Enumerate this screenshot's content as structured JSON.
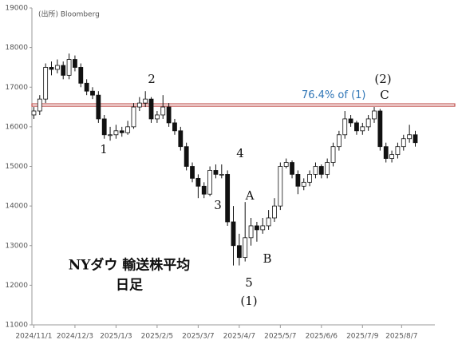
{
  "chart_data": {
    "type": "candlestick",
    "source": "(出所) Bloomberg",
    "x": [
      0,
      3,
      6,
      9,
      12,
      15,
      18,
      21,
      24,
      27,
      30,
      33,
      36,
      39,
      42,
      45,
      48,
      51,
      54,
      57,
      60,
      63,
      66,
      69,
      72,
      75,
      78,
      81,
      84,
      87,
      90,
      93,
      96,
      99,
      102,
      105,
      108,
      111,
      114,
      117,
      120,
      123,
      126,
      129,
      132,
      135,
      138,
      141,
      144,
      147,
      150,
      153,
      156,
      159,
      162,
      165,
      168,
      171,
      174,
      177,
      180,
      183,
      186,
      189,
      192,
      195
    ],
    "open": [
      16300,
      16400,
      16700,
      17500,
      17450,
      17550,
      17300,
      17700,
      17500,
      17100,
      16900,
      16800,
      16200,
      15800,
      15800,
      15900,
      15850,
      16000,
      16500,
      16600,
      16700,
      16200,
      16300,
      16500,
      16100,
      15900,
      15500,
      15000,
      14700,
      14500,
      14300,
      14900,
      14800,
      14800,
      13600,
      13000,
      12700,
      13200,
      13500,
      13400,
      13500,
      13700,
      14000,
      15000,
      15100,
      14800,
      14500,
      14600,
      14800,
      15000,
      14800,
      15100,
      15500,
      15800,
      16200,
      16100,
      15900,
      16000,
      16200,
      16400,
      15500,
      15200,
      15300,
      15500,
      15700,
      15800
    ],
    "high": [
      16500,
      16800,
      17600,
      17650,
      17700,
      17650,
      17850,
      17800,
      17600,
      17200,
      17000,
      16900,
      16300,
      16000,
      16050,
      16000,
      16150,
      16600,
      16750,
      16900,
      16750,
      16400,
      16800,
      16600,
      16200,
      16000,
      15600,
      15100,
      14800,
      14600,
      15000,
      15050,
      15050,
      14900,
      14000,
      13300,
      14100,
      13700,
      13600,
      13700,
      13900,
      14200,
      15100,
      15200,
      15150,
      14900,
      14700,
      14900,
      15100,
      15050,
      15200,
      15600,
      15900,
      16400,
      16300,
      16150,
      16100,
      16300,
      16500,
      16450,
      15600,
      15400,
      15600,
      15800,
      16050,
      15900
    ],
    "low": [
      16200,
      16300,
      16600,
      17300,
      17350,
      17200,
      17200,
      17400,
      17000,
      16800,
      16700,
      16100,
      15700,
      15650,
      15700,
      15750,
      15800,
      15950,
      16400,
      16500,
      16100,
      16100,
      16200,
      16000,
      15800,
      15400,
      14900,
      14600,
      14200,
      14200,
      14250,
      14700,
      14700,
      13500,
      12500,
      12500,
      12600,
      13000,
      13100,
      13300,
      13400,
      13600,
      13900,
      14950,
      14700,
      14300,
      14400,
      14500,
      14700,
      14700,
      14700,
      15000,
      15400,
      15700,
      16000,
      15800,
      15800,
      15900,
      16100,
      15400,
      15100,
      15100,
      15200,
      15400,
      15600,
      15500
    ],
    "close": [
      16400,
      16700,
      17500,
      17450,
      17550,
      17300,
      17700,
      17500,
      17100,
      16900,
      16800,
      16200,
      15800,
      15800,
      15900,
      15850,
      16000,
      16500,
      16600,
      16700,
      16200,
      16300,
      16500,
      16100,
      15900,
      15500,
      15000,
      14700,
      14500,
      14300,
      14900,
      14800,
      14800,
      13600,
      13000,
      12700,
      13200,
      13500,
      13400,
      13500,
      13700,
      14000,
      15000,
      15100,
      14800,
      14500,
      14600,
      14800,
      15000,
      14800,
      15100,
      15500,
      15800,
      16200,
      16100,
      15900,
      16000,
      16200,
      16400,
      15500,
      15200,
      15300,
      15500,
      15700,
      15800,
      15600
    ],
    "xlim": [
      -1,
      205
    ],
    "xticks": [
      {
        "value": 0,
        "label": "2024/11/1"
      },
      {
        "value": 21,
        "label": "2024/12/3"
      },
      {
        "value": 42,
        "label": "2025/1/3"
      },
      {
        "value": 63,
        "label": "2025/2/5"
      },
      {
        "value": 84,
        "label": "2025/3/7"
      },
      {
        "value": 105,
        "label": "2025/4/7"
      },
      {
        "value": 126,
        "label": "2025/5/7"
      },
      {
        "value": 147,
        "label": "2025/6/6"
      },
      {
        "value": 168,
        "label": "2025/7/9"
      },
      {
        "value": 188,
        "label": "2025/8/7"
      }
    ],
    "ylim": [
      11000,
      19000
    ],
    "yticks": [
      11000,
      12000,
      13000,
      14000,
      15000,
      16000,
      17000,
      18000,
      19000
    ],
    "hline": {
      "value": 16550,
      "color": "#c0504d",
      "label": "76.4% of (1)",
      "label_color": "#2e75b6"
    },
    "annotations": [
      "1",
      "2",
      "3",
      "4",
      "5",
      "(1)",
      "A",
      "B",
      "C",
      "(2)",
      "NYダウ 輸送株平均",
      "日足"
    ]
  }
}
